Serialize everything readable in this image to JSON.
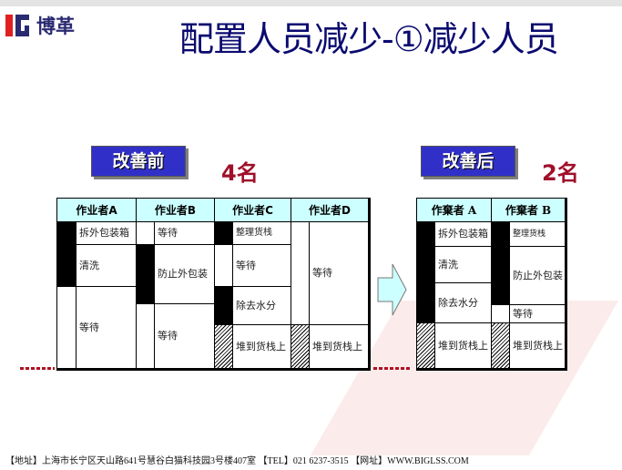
{
  "header": {
    "logo_text": "博革",
    "title": "配置人员减少-①减少人员"
  },
  "before": {
    "label": "改善前",
    "count": "4名",
    "workers": [
      {
        "name": "作业者A",
        "tasks": [
          "拆外包装箱",
          "清洗",
          "等待"
        ]
      },
      {
        "name": "作业者B",
        "tasks": [
          "等待",
          "防止外包装",
          "等待"
        ]
      },
      {
        "name": "作业者C",
        "tasks": [
          "整理货栈",
          "等待",
          "除去水分",
          "堆到货栈上"
        ]
      },
      {
        "name": "作业者D",
        "tasks": [
          "等待",
          "堆到货栈上"
        ]
      }
    ]
  },
  "after": {
    "label": "改善后",
    "count": "2名",
    "workers": [
      {
        "name": "作棄者 A",
        "tasks": [
          "拆外包装箱",
          "清洗",
          "除去水分",
          "堆到货栈上"
        ]
      },
      {
        "name": "作棄者 B",
        "tasks": [
          "整理货栈",
          "防止外包装",
          "等待",
          "堆到货栈上"
        ]
      }
    ]
  },
  "footer": {
    "text": "【地址】上海市长宁区天山路641号慧谷白猫科技园3号楼407室 【TEL】021 6237-3515 【网址】WWW.BIGLSS.COM"
  },
  "colors": {
    "title": "#0a0a70",
    "tag_bg": "#3030c8",
    "count": "#a0102a",
    "header_cell": "#ccffff"
  }
}
